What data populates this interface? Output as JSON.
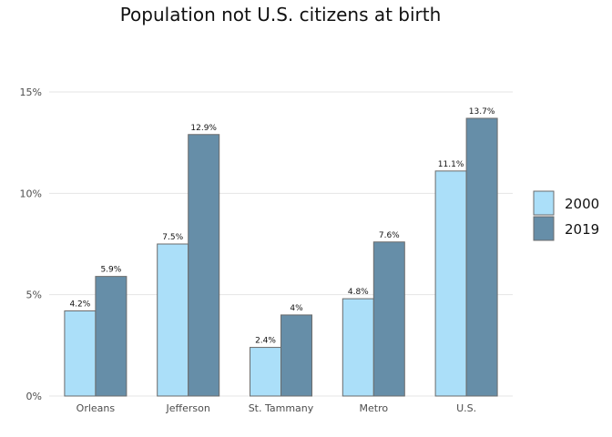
{
  "chart_data": {
    "type": "bar",
    "title": "Population not U.S. citizens at birth",
    "xlabel": "",
    "ylabel": "",
    "categories": [
      "Orleans",
      "Jefferson",
      "St. Tammany",
      "Metro",
      "U.S."
    ],
    "series": [
      {
        "name": "2000",
        "color": "#abdff9",
        "values": [
          4.2,
          7.5,
          2.4,
          4.8,
          11.1
        ],
        "labels": [
          "4.2%",
          "7.5%",
          "2.4%",
          "4.8%",
          "11.1%"
        ]
      },
      {
        "name": "2019",
        "color": "#668ea8",
        "values": [
          5.9,
          12.9,
          4.0,
          7.6,
          13.7
        ],
        "labels": [
          "5.9%",
          "12.9%",
          "4%",
          "7.6%",
          "13.7%"
        ]
      }
    ],
    "ylim": [
      0,
      15
    ],
    "yticks": [
      0,
      5,
      10,
      15
    ],
    "ytick_labels": [
      "0%",
      "5%",
      "10%",
      "15%"
    ],
    "grid": true,
    "legend_position": "right"
  }
}
